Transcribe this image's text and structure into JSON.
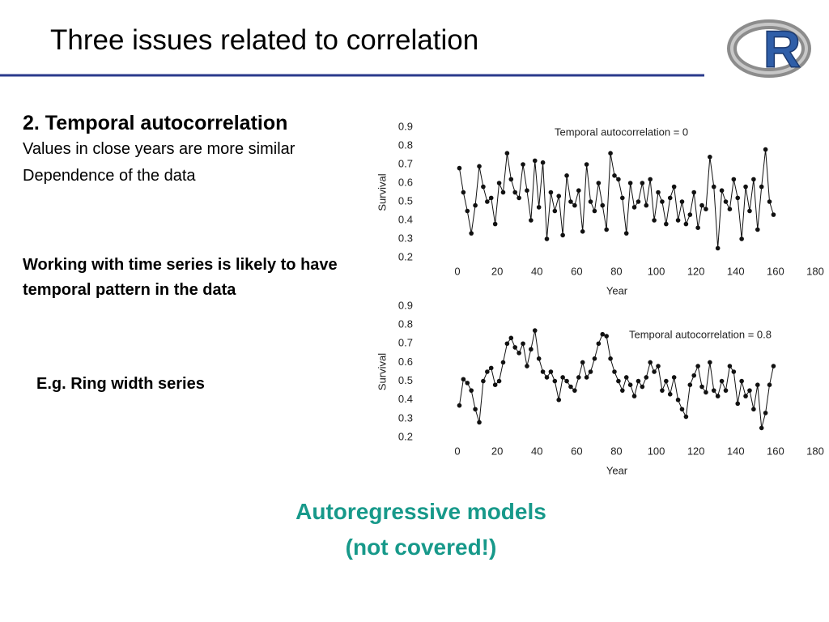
{
  "slide": {
    "title": "Three issues related to correlation",
    "logo": "R",
    "heading": "2. Temporal autocorrelation",
    "lines": [
      "Values in close years are more similar",
      "Dependence of the data"
    ],
    "note": "Working with time series is likely to have temporal pattern in the data",
    "example": "E.g. Ring width series",
    "footer": [
      "Autoregressive models",
      "(not covered!)"
    ]
  },
  "chart_data": [
    {
      "type": "line",
      "annotation": "Temporal autocorrelation = 0",
      "xlabel": "Year",
      "ylabel": "Survival",
      "xlim": [
        0,
        180
      ],
      "xticks": [
        0,
        20,
        40,
        60,
        80,
        100,
        120,
        140,
        160,
        180
      ],
      "ylim": [
        0.2,
        0.9
      ],
      "yticks": [
        0.2,
        0.3,
        0.4,
        0.5,
        0.6,
        0.7,
        0.8,
        0.9
      ],
      "color": "#111111",
      "x": [
        1,
        3,
        5,
        7,
        9,
        11,
        13,
        15,
        17,
        19,
        21,
        23,
        25,
        27,
        29,
        31,
        33,
        35,
        37,
        39,
        41,
        43,
        45,
        47,
        49,
        51,
        53,
        55,
        57,
        59,
        61,
        63,
        65,
        67,
        69,
        71,
        73,
        75,
        77,
        79,
        81,
        83,
        85,
        87,
        89,
        91,
        93,
        95,
        97,
        99,
        101,
        103,
        105,
        107,
        109,
        111,
        113,
        115,
        117,
        119,
        121,
        123,
        125,
        127,
        129,
        131,
        133,
        135,
        137,
        139,
        141,
        143,
        145,
        147,
        149,
        151,
        153,
        155,
        157,
        159
      ],
      "values": [
        0.68,
        0.55,
        0.45,
        0.33,
        0.48,
        0.69,
        0.58,
        0.5,
        0.52,
        0.38,
        0.6,
        0.55,
        0.76,
        0.62,
        0.55,
        0.52,
        0.7,
        0.56,
        0.4,
        0.72,
        0.47,
        0.71,
        0.3,
        0.55,
        0.45,
        0.53,
        0.32,
        0.64,
        0.5,
        0.48,
        0.56,
        0.34,
        0.7,
        0.5,
        0.45,
        0.6,
        0.48,
        0.35,
        0.76,
        0.64,
        0.62,
        0.52,
        0.33,
        0.6,
        0.47,
        0.5,
        0.6,
        0.48,
        0.62,
        0.4,
        0.55,
        0.5,
        0.38,
        0.52,
        0.58,
        0.4,
        0.5,
        0.38,
        0.43,
        0.55,
        0.36,
        0.48,
        0.46,
        0.74,
        0.58,
        0.25,
        0.56,
        0.5,
        0.46,
        0.62,
        0.52,
        0.3,
        0.58,
        0.45,
        0.62,
        0.35,
        0.58,
        0.78,
        0.5,
        0.43
      ]
    },
    {
      "type": "line",
      "annotation": "Temporal autocorrelation = 0.8",
      "xlabel": "Year",
      "ylabel": "Survival",
      "xlim": [
        0,
        180
      ],
      "xticks": [
        0,
        20,
        40,
        60,
        80,
        100,
        120,
        140,
        160,
        180
      ],
      "ylim": [
        0.2,
        0.9
      ],
      "yticks": [
        0.2,
        0.3,
        0.4,
        0.5,
        0.6,
        0.7,
        0.8,
        0.9
      ],
      "color": "#111111",
      "x": [
        1,
        3,
        5,
        7,
        9,
        11,
        13,
        15,
        17,
        19,
        21,
        23,
        25,
        27,
        29,
        31,
        33,
        35,
        37,
        39,
        41,
        43,
        45,
        47,
        49,
        51,
        53,
        55,
        57,
        59,
        61,
        63,
        65,
        67,
        69,
        71,
        73,
        75,
        77,
        79,
        81,
        83,
        85,
        87,
        89,
        91,
        93,
        95,
        97,
        99,
        101,
        103,
        105,
        107,
        109,
        111,
        113,
        115,
        117,
        119,
        121,
        123,
        125,
        127,
        129,
        131,
        133,
        135,
        137,
        139,
        141,
        143,
        145,
        147,
        149,
        151,
        153,
        155,
        157,
        159
      ],
      "values": [
        0.37,
        0.51,
        0.49,
        0.45,
        0.35,
        0.28,
        0.5,
        0.55,
        0.57,
        0.48,
        0.5,
        0.6,
        0.7,
        0.73,
        0.68,
        0.65,
        0.7,
        0.58,
        0.67,
        0.77,
        0.62,
        0.55,
        0.52,
        0.55,
        0.5,
        0.4,
        0.52,
        0.5,
        0.47,
        0.45,
        0.52,
        0.6,
        0.52,
        0.55,
        0.62,
        0.7,
        0.75,
        0.74,
        0.62,
        0.55,
        0.5,
        0.45,
        0.52,
        0.48,
        0.42,
        0.5,
        0.47,
        0.52,
        0.6,
        0.55,
        0.58,
        0.45,
        0.5,
        0.43,
        0.52,
        0.4,
        0.35,
        0.31,
        0.48,
        0.53,
        0.58,
        0.47,
        0.44,
        0.6,
        0.45,
        0.42,
        0.5,
        0.45,
        0.58,
        0.55,
        0.38,
        0.5,
        0.42,
        0.45,
        0.35,
        0.48,
        0.25,
        0.33,
        0.48,
        0.58
      ]
    }
  ]
}
